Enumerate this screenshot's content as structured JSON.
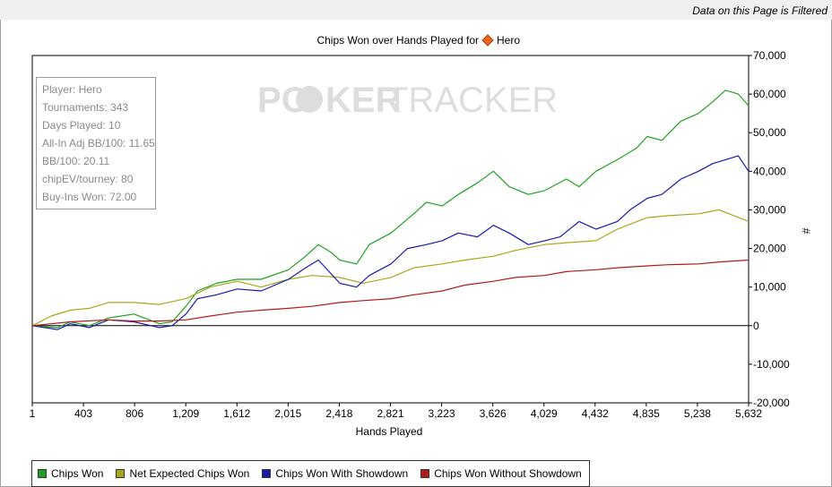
{
  "header": {
    "filter_note": "Data on this Page is Filtered"
  },
  "watermark": {
    "left": "PO",
    "right": "KER",
    "tail": "TRACKER"
  },
  "stats": [
    {
      "label": "Player: Hero"
    },
    {
      "label": "Tournaments: 343"
    },
    {
      "label": "Days Played: 10"
    },
    {
      "label": "All-In Adj BB/100: 11.65"
    },
    {
      "label": "BB/100: 20.11"
    },
    {
      "label": "chipEV/tourney: 80"
    },
    {
      "label": "Buy-Ins Won: 72.00"
    }
  ],
  "chart_data": {
    "type": "line",
    "title": "Chips Won over Hands Played for",
    "title_player": "Hero",
    "xlabel": "Hands Played",
    "ylabel": "#",
    "xlim": [
      1,
      5632
    ],
    "ylim": [
      -20000,
      70000
    ],
    "xticks": [
      "1",
      "403",
      "806",
      "1,209",
      "1,612",
      "2,015",
      "2,418",
      "2,821",
      "3,223",
      "3,626",
      "4,029",
      "4,432",
      "4,835",
      "5,238",
      "5,632"
    ],
    "yticks": [
      "70,000",
      "60,000",
      "50,000",
      "40,000",
      "30,000",
      "20,000",
      "10,000",
      "0",
      "-10,000",
      "-20,000"
    ],
    "grid": false,
    "legend_position": "bottom-left",
    "series": [
      {
        "name": "Chips Won",
        "color": "#1fa01f",
        "x": [
          1,
          200,
          300,
          450,
          600,
          800,
          1000,
          1100,
          1209,
          1300,
          1450,
          1612,
          1800,
          2015,
          2150,
          2250,
          2350,
          2418,
          2550,
          2650,
          2821,
          3000,
          3100,
          3223,
          3350,
          3500,
          3626,
          3750,
          3900,
          4029,
          4200,
          4300,
          4432,
          4600,
          4750,
          4835,
          4950,
          5100,
          5238,
          5350,
          5450,
          5550,
          5632
        ],
        "values": [
          0,
          -500,
          1000,
          0,
          2000,
          3000,
          500,
          1000,
          5000,
          9000,
          11000,
          12000,
          12000,
          14500,
          18000,
          21000,
          19000,
          17000,
          16000,
          21000,
          24000,
          29000,
          32000,
          31000,
          34000,
          37000,
          40000,
          36000,
          34000,
          35000,
          38000,
          36000,
          40000,
          43000,
          46000,
          49000,
          48000,
          53000,
          55000,
          58000,
          61000,
          60000,
          57000
        ]
      },
      {
        "name": "Net Expected Chips Won",
        "color": "#a7a71c",
        "x": [
          1,
          150,
          300,
          450,
          600,
          800,
          1000,
          1209,
          1400,
          1612,
          1800,
          2015,
          2200,
          2418,
          2600,
          2821,
          3000,
          3223,
          3400,
          3626,
          3800,
          4029,
          4200,
          4432,
          4600,
          4835,
          5000,
          5238,
          5400,
          5632
        ],
        "values": [
          0,
          2500,
          4000,
          4500,
          6000,
          6000,
          5500,
          7000,
          10000,
          11500,
          10000,
          12000,
          13000,
          12500,
          11000,
          12500,
          15000,
          16000,
          17000,
          18000,
          19500,
          21000,
          21500,
          22000,
          25000,
          28000,
          28500,
          29000,
          30000,
          27000
        ]
      },
      {
        "name": "Chips Won With Showdown",
        "color": "#1a1aa8",
        "x": [
          1,
          200,
          300,
          450,
          600,
          800,
          1000,
          1100,
          1209,
          1300,
          1450,
          1612,
          1800,
          2015,
          2150,
          2250,
          2418,
          2550,
          2650,
          2821,
          2950,
          3100,
          3223,
          3350,
          3500,
          3626,
          3750,
          3900,
          4029,
          4150,
          4300,
          4432,
          4600,
          4700,
          4835,
          4950,
          5100,
          5238,
          5350,
          5450,
          5550,
          5632
        ],
        "values": [
          0,
          -1000,
          500,
          -500,
          1500,
          1000,
          -500,
          0,
          3000,
          7000,
          8000,
          9500,
          9000,
          12000,
          15000,
          17000,
          11000,
          10000,
          13000,
          16000,
          20000,
          21000,
          22000,
          24000,
          23000,
          26000,
          24000,
          21000,
          22000,
          23000,
          27000,
          25000,
          27000,
          30000,
          33000,
          34000,
          38000,
          40000,
          42000,
          43000,
          44000,
          40000
        ]
      },
      {
        "name": "Chips Won Without Showdown",
        "color": "#b21a1a",
        "x": [
          1,
          300,
          600,
          800,
          1000,
          1209,
          1400,
          1612,
          1800,
          2015,
          2200,
          2418,
          2600,
          2821,
          3000,
          3223,
          3400,
          3626,
          3800,
          4029,
          4200,
          4432,
          4600,
          4835,
          5000,
          5238,
          5400,
          5632
        ],
        "values": [
          0,
          1000,
          1500,
          1200,
          1200,
          1500,
          2500,
          3500,
          4000,
          4500,
          5000,
          6000,
          6500,
          7000,
          8000,
          9000,
          10500,
          11500,
          12500,
          13000,
          14000,
          14500,
          15000,
          15500,
          15800,
          16000,
          16500,
          17000
        ]
      }
    ]
  }
}
